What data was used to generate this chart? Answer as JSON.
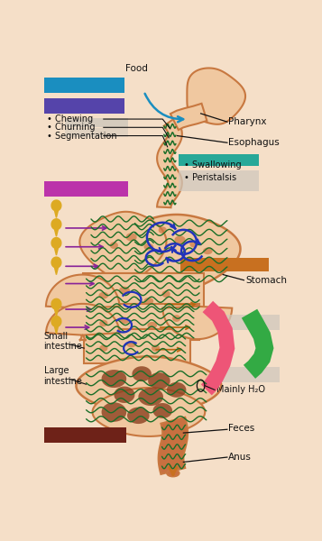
{
  "bg": "#f5dfc8",
  "gut_fill": "#f0c8a0",
  "gut_edge": "#c87840",
  "green_wave": "#1a6e28",
  "dark_blue": "#2233bb",
  "purple_arrow": "#882299",
  "orange_arrow": "#bb6611",
  "golden_drop": "#ddaa22",
  "food_blue": "#1a8ec0",
  "purple_bar": "#5544aa",
  "magenta_bar": "#bb33aa",
  "teal_bar": "#28a898",
  "brown_bar": "#6e2218",
  "orange_bar": "#c87020",
  "pink_struct": "#ee5577",
  "green_struct": "#33aa44",
  "feces_fill": "#c87040",
  "feces_dark": "#8b4020",
  "text_color": "#111111",
  "gray_legend": "#d0c8bc",
  "labels": {
    "food": "Food",
    "pharynx": "Pharynx",
    "esophagus": "Esophagus",
    "chewing": "Chewing",
    "churning": "Churning",
    "segmentation": "Segmentation",
    "swallowing": "Swallowing",
    "peristalsis": "Peristalsis",
    "stomach": "Stomach",
    "small_intestine": "Small\nintestine",
    "large_intestine": "Large\nintestine",
    "mainly_h2o": "Mainly H₂O",
    "feces": "Feces",
    "anus": "Anus"
  }
}
